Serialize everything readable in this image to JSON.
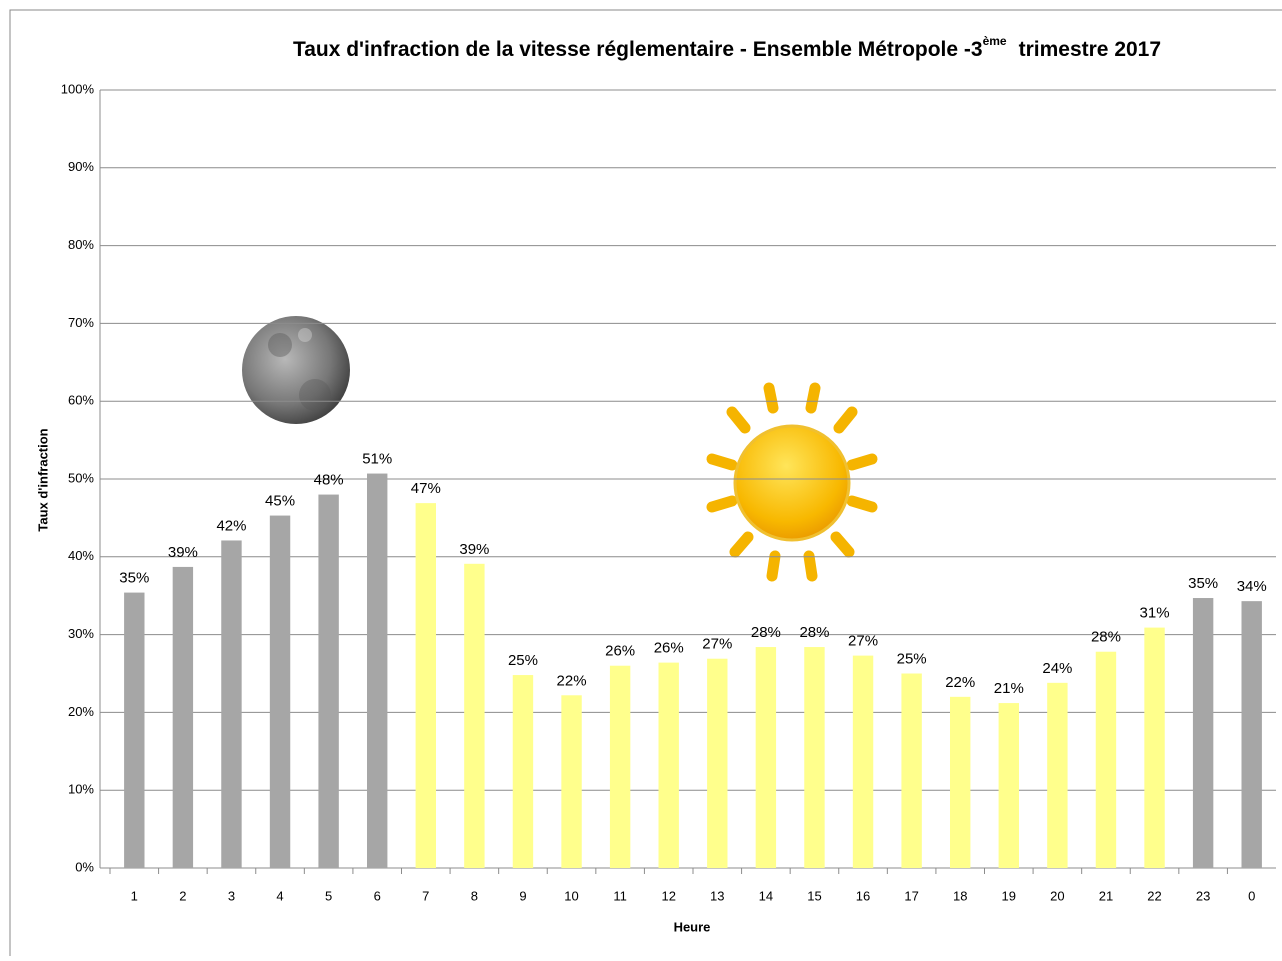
{
  "chart_data": {
    "type": "bar",
    "title": [
      "Taux d'infraction de la vitesse réglementaire - Ensemble Métropole -3",
      "ème",
      "trimestre 2017"
    ],
    "x_label": "Heure",
    "y_label": "Taux d'infraction",
    "categories": [
      "1",
      "2",
      "3",
      "4",
      "5",
      "6",
      "7",
      "8",
      "9",
      "10",
      "11",
      "12",
      "13",
      "14",
      "15",
      "16",
      "17",
      "18",
      "19",
      "20",
      "21",
      "22",
      "23",
      "0"
    ],
    "values": [
      35.4,
      38.7,
      42.1,
      45.3,
      48,
      50.7,
      46.9,
      39.1,
      24.8,
      22.2,
      26,
      26.4,
      26.9,
      28.4,
      28.4,
      27.3,
      25,
      22,
      21.2,
      23.8,
      27.8,
      30.9,
      34.7,
      34.3
    ],
    "value_labels": [
      "35%",
      "39%",
      "42%",
      "45%",
      "48%",
      "51%",
      "47%",
      "39%",
      "25%",
      "22%",
      "26%",
      "26%",
      "27%",
      "28%",
      "28%",
      "27%",
      "25%",
      "22%",
      "21%",
      "24%",
      "28%",
      "31%",
      "35%",
      "34%"
    ],
    "colors": [
      "#a6a6a6",
      "#a6a6a6",
      "#a6a6a6",
      "#a6a6a6",
      "#a6a6a6",
      "#a6a6a6",
      "#ffff8c",
      "#ffff8c",
      "#ffff8c",
      "#ffff8c",
      "#ffff8c",
      "#ffff8c",
      "#ffff8c",
      "#ffff8c",
      "#ffff8c",
      "#ffff8c",
      "#ffff8c",
      "#ffff8c",
      "#ffff8c",
      "#ffff8c",
      "#ffff8c",
      "#ffff8c",
      "#a6a6a6",
      "#a6a6a6"
    ],
    "ylim": [
      0,
      100
    ],
    "yticks": [
      {
        "value": 0,
        "label": "0%"
      },
      {
        "value": 10,
        "label": "10%"
      },
      {
        "value": 20,
        "label": "20%"
      },
      {
        "value": 30,
        "label": "30%"
      },
      {
        "value": 40,
        "label": "40%"
      },
      {
        "value": 50,
        "label": "50%"
      },
      {
        "value": 60,
        "label": "60%"
      },
      {
        "value": 70,
        "label": "70%"
      },
      {
        "value": 80,
        "label": "80%"
      },
      {
        "value": 90,
        "label": "90%"
      },
      {
        "value": 100,
        "label": "100%"
      }
    ],
    "grid": true
  }
}
